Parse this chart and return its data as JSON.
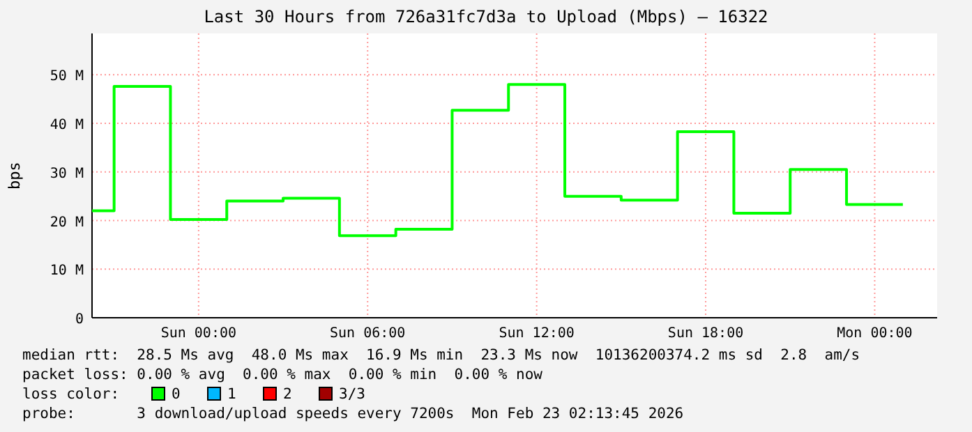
{
  "chart_data": {
    "type": "step",
    "title": "Last 30 Hours from 726a31fc7d3a to Upload (Mbps) – 16322",
    "ylabel": "bps",
    "x": [
      "2026-02-21T20:13",
      "2026-02-21T21:00",
      "2026-02-21T23:00",
      "2026-02-22T01:00",
      "2026-02-22T03:00",
      "2026-02-22T05:00",
      "2026-02-22T07:00",
      "2026-02-22T09:00",
      "2026-02-22T11:00",
      "2026-02-22T13:00",
      "2026-02-22T15:00",
      "2026-02-22T17:00",
      "2026-02-22T19:00",
      "2026-02-22T21:00",
      "2026-02-22T23:00",
      "2026-02-23T01:00"
    ],
    "series": [
      {
        "color": "#00ff00",
        "values": [
          22,
          47.6,
          20.2,
          24.0,
          24.6,
          16.9,
          18.2,
          42.7,
          48.0,
          25.0,
          24.2,
          38.3,
          21.5,
          30.5,
          23.3,
          23.3
        ]
      }
    ],
    "xlim": [
      "2026-02-21T20:13",
      "2026-02-23T02:13"
    ],
    "ylim": [
      0,
      58.5
    ],
    "xticks": [
      {
        "value": "2026-02-22T00:00",
        "label": "Sun 00:00"
      },
      {
        "value": "2026-02-22T06:00",
        "label": "Sun 06:00"
      },
      {
        "value": "2026-02-22T12:00",
        "label": "Sun 12:00"
      },
      {
        "value": "2026-02-22T18:00",
        "label": "Sun 18:00"
      },
      {
        "value": "2026-02-23T00:00",
        "label": "Mon 00:00"
      }
    ],
    "yticks": [
      {
        "value": 0,
        "label": "0"
      },
      {
        "value": 10,
        "label": "10 M"
      },
      {
        "value": 20,
        "label": "20 M"
      },
      {
        "value": 30,
        "label": "30 M"
      },
      {
        "value": 40,
        "label": "40 M"
      },
      {
        "value": 50,
        "label": "50 M"
      }
    ],
    "grid": true,
    "annotations": [
      "median rtt:  28.5 Ms avg  48.0 Ms max  16.9 Ms min  23.3 Ms now  10136200374.2 ms sd  2.8  am/s",
      "packet loss: 0.00 % avg  0.00 % max  0.00 % min  0.00 % now",
      "loss color:",
      "0",
      "1",
      "2",
      "3/3",
      "probe:       3 download/upload speeds every 7200s  Mon Feb 23 02:13:45 2026"
    ]
  }
}
